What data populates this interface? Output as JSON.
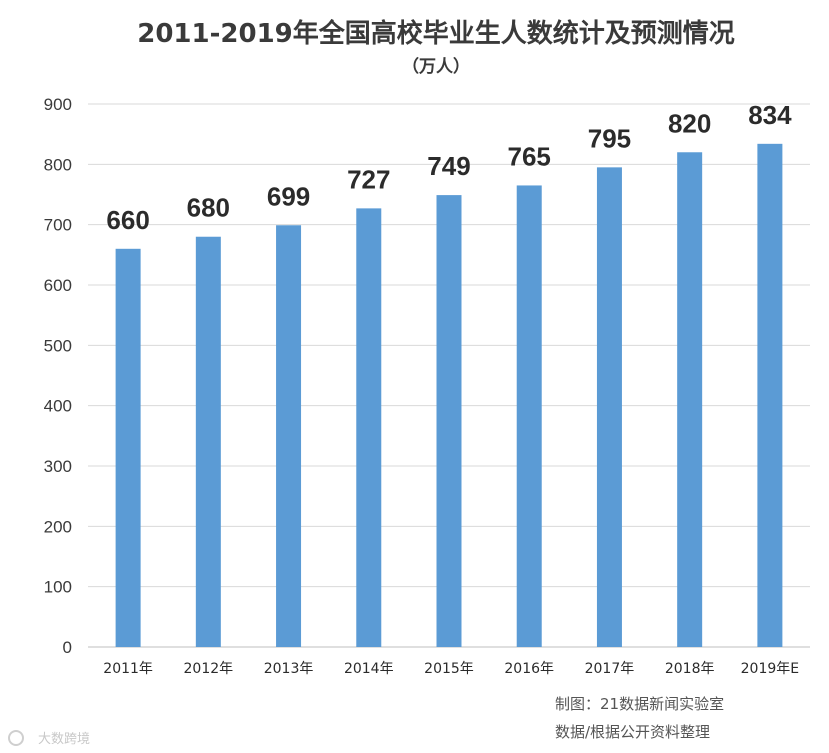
{
  "chart_data": {
    "type": "bar",
    "title": "2011-2019年全国高校毕业生人数统计及预测情况",
    "subtitle": "（万人）",
    "categories": [
      "2011年",
      "2012年",
      "2013年",
      "2014年",
      "2015年",
      "2016年",
      "2017年",
      "2018年",
      "2019年E"
    ],
    "values": [
      660,
      680,
      699,
      727,
      749,
      765,
      795,
      820,
      834
    ],
    "ylim": [
      0,
      900
    ],
    "yticks": [
      0,
      100,
      200,
      300,
      400,
      500,
      600,
      700,
      800,
      900
    ],
    "xlabel": "",
    "ylabel": "",
    "grid": true,
    "bar_color": "#5b9bd5"
  },
  "credits": {
    "line1": "制图：21数据新闻实验室",
    "line2": "数据/根据公开资料整理"
  },
  "watermark": {
    "text": "大数跨境"
  }
}
